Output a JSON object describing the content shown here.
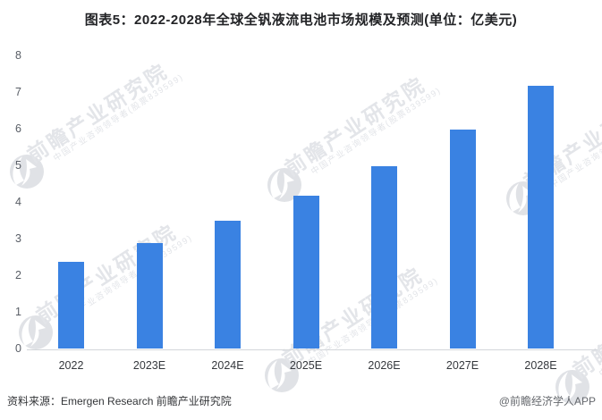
{
  "chart_data": {
    "type": "bar",
    "title": "图表5：2022-2028年全球全钒液流电池市场规模及预测(单位：亿美元)",
    "unit": "亿美元",
    "categories": [
      "2022",
      "2023E",
      "2024E",
      "2025E",
      "2026E",
      "2027E",
      "2028E"
    ],
    "values": [
      2.4,
      2.9,
      3.5,
      4.2,
      5.0,
      6.0,
      7.2
    ],
    "xlabel": "",
    "ylabel": "",
    "ylim": [
      0,
      8
    ],
    "yticks": [
      0,
      1,
      2,
      3,
      4,
      5,
      6,
      7,
      8
    ],
    "grid": false,
    "legend": false,
    "bar_color": "#3a82e2"
  },
  "footer": {
    "source": "资料来源：Emergen Research 前瞻产业研究院",
    "credit": "@前瞻经济学人APP"
  },
  "watermark": {
    "line1": "前瞻产业研究院",
    "line2": "中国产业咨询领导者(股票839599)",
    "logo_icon": "qianzhan-bird-logo",
    "text_color": "#e3e5e9",
    "logo_color": "#e0e2e6"
  }
}
